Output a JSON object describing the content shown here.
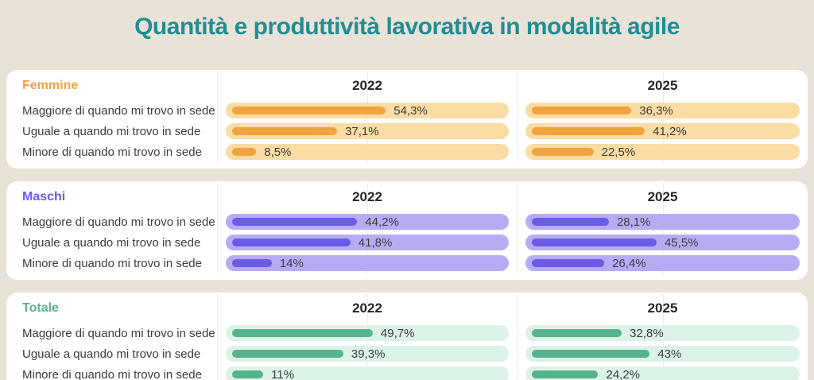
{
  "title": "Quantità e produttività lavorativa in modalità agile",
  "years": [
    "2022",
    "2025"
  ],
  "colors": {
    "background": "#e9e2d7",
    "title": "#1f8e94",
    "card": "#ffffff",
    "text": "#3b3b3b",
    "year_header": "#262626"
  },
  "groups": [
    {
      "name": "Femmine",
      "color": "#f0a441",
      "track": "#fadca5",
      "rows": [
        {
          "label": "Maggiore di quando mi trovo in sede",
          "cells": [
            {
              "text": "54,3%",
              "value": 54.3
            },
            {
              "text": "36,3%",
              "value": 36.3
            }
          ]
        },
        {
          "label": "Uguale a quando mi trovo in sede",
          "cells": [
            {
              "text": "37,1%",
              "value": 37.1
            },
            {
              "text": "41,2%",
              "value": 41.2
            }
          ]
        },
        {
          "label": "Minore di quando mi trovo in sede",
          "cells": [
            {
              "text": "8,5%",
              "value": 8.5
            },
            {
              "text": "22,5%",
              "value": 22.5
            }
          ]
        }
      ]
    },
    {
      "name": "Maschi",
      "color": "#6a5be8",
      "track": "#b7acf4",
      "rows": [
        {
          "label": "Maggiore di quando mi trovo in sede",
          "cells": [
            {
              "text": "44,2%",
              "value": 44.2
            },
            {
              "text": "28,1%",
              "value": 28.1
            }
          ]
        },
        {
          "label": "Uguale a quando mi trovo in sede",
          "cells": [
            {
              "text": "41,8%",
              "value": 41.8
            },
            {
              "text": "45,5%",
              "value": 45.5
            }
          ]
        },
        {
          "label": "Minore di quando mi trovo in sede",
          "cells": [
            {
              "text": "14%",
              "value": 14
            },
            {
              "text": "26,4%",
              "value": 26.4
            }
          ]
        }
      ]
    },
    {
      "name": "Totale",
      "color": "#55b48d",
      "track": "#dcf2e7",
      "rows": [
        {
          "label": "Maggiore di quando mi trovo in sede",
          "cells": [
            {
              "text": "49,7%",
              "value": 49.7
            },
            {
              "text": "32,8%",
              "value": 32.8
            }
          ]
        },
        {
          "label": "Uguale a quando mi trovo in sede",
          "cells": [
            {
              "text": "39,3%",
              "value": 39.3
            },
            {
              "text": "43%",
              "value": 43
            }
          ]
        },
        {
          "label": "Minore di quando mi trovo in sede",
          "cells": [
            {
              "text": "11%",
              "value": 11
            },
            {
              "text": "24,2%",
              "value": 24.2
            }
          ]
        }
      ]
    }
  ],
  "chart_data": {
    "type": "bar",
    "orientation": "horizontal",
    "title": "Quantità e produttività lavorativa in modalità agile",
    "unit": "%",
    "categories": [
      "Maggiore di quando mi trovo in sede",
      "Uguale a quando mi trovo in sede",
      "Minore di quando mi trovo in sede"
    ],
    "xlim": [
      0,
      100
    ],
    "groups": [
      {
        "name": "Femmine",
        "series": [
          {
            "name": "2022",
            "values": [
              54.3,
              37.1,
              8.5
            ]
          },
          {
            "name": "2025",
            "values": [
              36.3,
              41.2,
              22.5
            ]
          }
        ]
      },
      {
        "name": "Maschi",
        "series": [
          {
            "name": "2022",
            "values": [
              44.2,
              41.8,
              14
            ]
          },
          {
            "name": "2025",
            "values": [
              28.1,
              45.5,
              26.4
            ]
          }
        ]
      },
      {
        "name": "Totale",
        "series": [
          {
            "name": "2022",
            "values": [
              49.7,
              39.3,
              11
            ]
          },
          {
            "name": "2025",
            "values": [
              32.8,
              43,
              24.2
            ]
          }
        ]
      }
    ]
  }
}
